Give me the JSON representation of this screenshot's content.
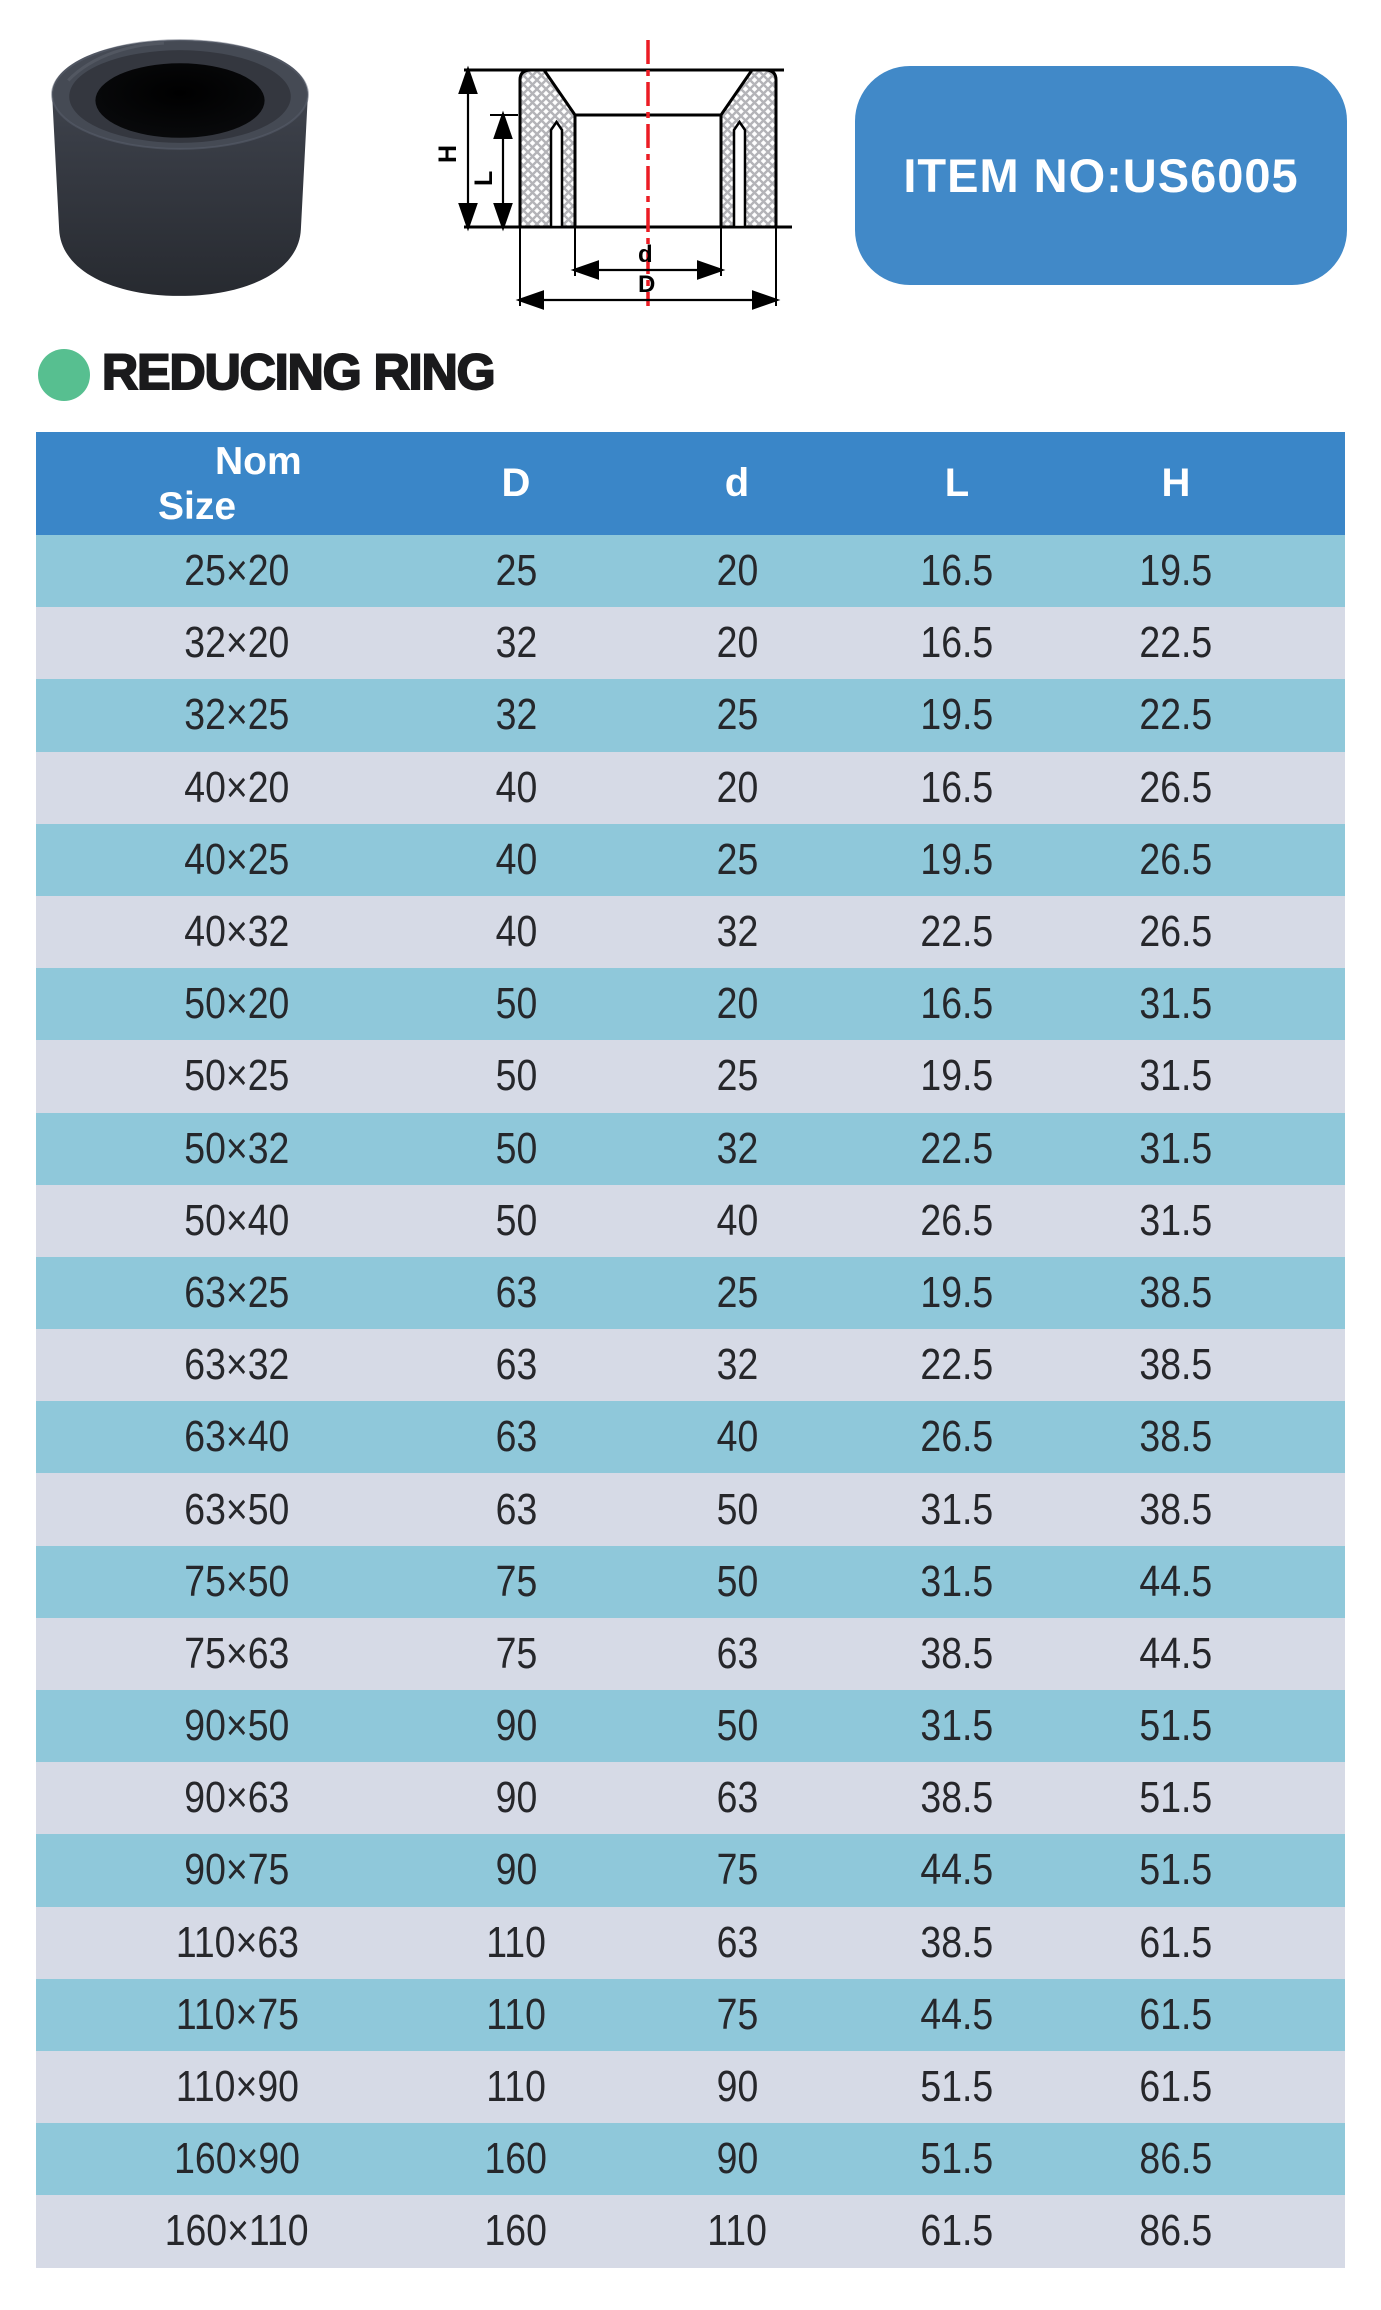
{
  "badge": {
    "label": "ITEM NO:US6005"
  },
  "section": {
    "title": "REDUCING RING"
  },
  "drawing": {
    "dim_height": "H",
    "dim_insert_length": "L",
    "dim_inner_diameter": "d",
    "dim_outer_diameter": "D"
  },
  "table": {
    "nom_header": [
      "Nom",
      "Size"
    ],
    "col_headers": [
      "D",
      "d",
      "L",
      "H"
    ],
    "rows": [
      [
        "25×20",
        "25",
        "20",
        "16.5",
        "19.5"
      ],
      [
        "32×20",
        "32",
        "20",
        "16.5",
        "22.5"
      ],
      [
        "32×25",
        "32",
        "25",
        "19.5",
        "22.5"
      ],
      [
        "40×20",
        "40",
        "20",
        "16.5",
        "26.5"
      ],
      [
        "40×25",
        "40",
        "25",
        "19.5",
        "26.5"
      ],
      [
        "40×32",
        "40",
        "32",
        "22.5",
        "26.5"
      ],
      [
        "50×20",
        "50",
        "20",
        "16.5",
        "31.5"
      ],
      [
        "50×25",
        "50",
        "25",
        "19.5",
        "31.5"
      ],
      [
        "50×32",
        "50",
        "32",
        "22.5",
        "31.5"
      ],
      [
        "50×40",
        "50",
        "40",
        "26.5",
        "31.5"
      ],
      [
        "63×25",
        "63",
        "25",
        "19.5",
        "38.5"
      ],
      [
        "63×32",
        "63",
        "32",
        "22.5",
        "38.5"
      ],
      [
        "63×40",
        "63",
        "40",
        "26.5",
        "38.5"
      ],
      [
        "63×50",
        "63",
        "50",
        "31.5",
        "38.5"
      ],
      [
        "75×50",
        "75",
        "50",
        "31.5",
        "44.5"
      ],
      [
        "75×63",
        "75",
        "63",
        "38.5",
        "44.5"
      ],
      [
        "90×50",
        "90",
        "50",
        "31.5",
        "51.5"
      ],
      [
        "90×63",
        "90",
        "63",
        "38.5",
        "51.5"
      ],
      [
        "90×75",
        "90",
        "75",
        "44.5",
        "51.5"
      ],
      [
        "110×63",
        "110",
        "63",
        "38.5",
        "61.5"
      ],
      [
        "110×75",
        "110",
        "75",
        "44.5",
        "61.5"
      ],
      [
        "110×90",
        "110",
        "90",
        "51.5",
        "61.5"
      ],
      [
        "160×90",
        "160",
        "90",
        "51.5",
        "86.5"
      ],
      [
        "160×110",
        "160",
        "110",
        "61.5",
        "86.5"
      ]
    ]
  },
  "colors": {
    "header_blue": "#3a86c8",
    "row_blue": "#8fc8da",
    "row_gray": "#d6dae6",
    "badge_blue": "#4189c8",
    "accent_green": "#57bf90",
    "centerline_red": "#ec1c24",
    "title_black": "#1a1a1c",
    "cell_text": "#26272b"
  }
}
